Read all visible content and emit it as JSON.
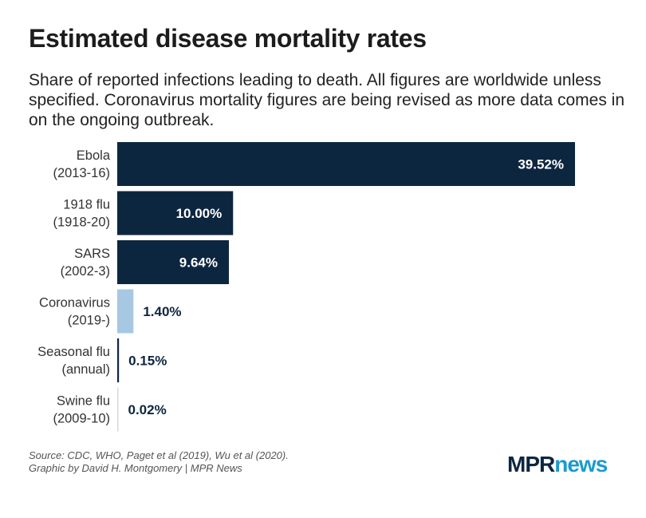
{
  "chart_data": {
    "type": "bar",
    "orientation": "horizontal",
    "title": "Estimated disease mortality rates",
    "subtitle": "Share of reported infections leading to death. All figures are worldwide unless specified. Coronavirus mortality figures are being revised as more data comes in on the ongoing outbreak.",
    "categories": [
      [
        "Ebola",
        "(2013-16)"
      ],
      [
        "1918 flu",
        "(1918-20)"
      ],
      [
        "SARS",
        "(2002-3)"
      ],
      [
        "Coronavirus",
        "(2019-)"
      ],
      [
        "Seasonal flu",
        "(annual)"
      ],
      [
        "Swine flu",
        "(2009-10)"
      ]
    ],
    "values": [
      39.52,
      10.0,
      9.64,
      1.4,
      0.15,
      0.02
    ],
    "data_labels": [
      "39.52%",
      "10.00%",
      "9.64%",
      "1.40%",
      "0.15%",
      "0.02%"
    ],
    "unit": "%",
    "colors": [
      "#0d2640",
      "#0d2640",
      "#0d2640",
      "#a7c8e3",
      "#0d2640",
      "#0d2640"
    ],
    "highlight": "Coronavirus",
    "grid": false
  },
  "footer": {
    "source": "Source: CDC, WHO, Paget et al (2019), Wu et al (2020).",
    "credit": "Graphic by David H. Montgomery | MPR News"
  },
  "logo": {
    "part1": "MPR",
    "part2": "news",
    "colors": [
      "#0d2640",
      "#1a9bd0"
    ]
  }
}
